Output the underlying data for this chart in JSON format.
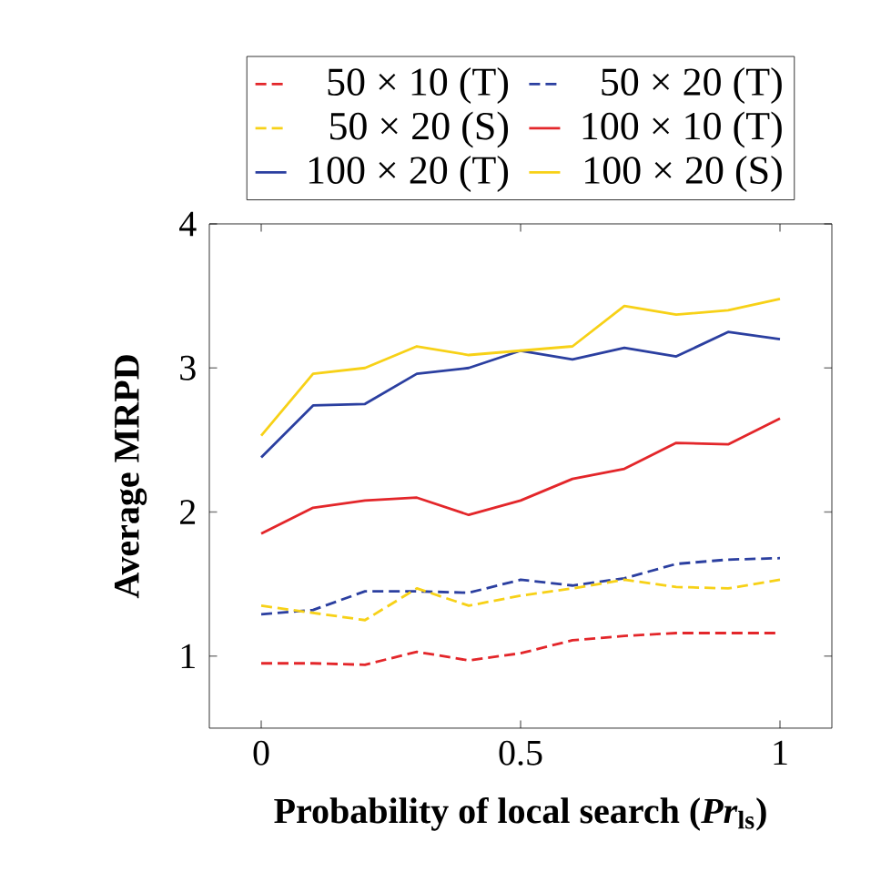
{
  "chart_data": {
    "type": "line",
    "xlabel": "Probability of local search (*Pr*$_{ls}$)",
    "ylabel": "Average MRPD",
    "x": [
      0,
      0.1,
      0.2,
      0.3,
      0.4,
      0.5,
      0.6,
      0.7,
      0.8,
      0.9,
      1
    ],
    "series": [
      {
        "name": "50 × 10 (T)",
        "color": "#e3262a",
        "line_style": "dashed",
        "values": [
          0.95,
          0.95,
          0.94,
          1.03,
          0.97,
          1.02,
          1.11,
          1.14,
          1.16,
          1.16,
          1.16
        ]
      },
      {
        "name": "50 × 20 (T)",
        "color": "#2b3fa0",
        "line_style": "dashed",
        "values": [
          1.29,
          1.32,
          1.45,
          1.45,
          1.44,
          1.53,
          1.49,
          1.54,
          1.64,
          1.67,
          1.68
        ]
      },
      {
        "name": "50 × 20 (S)",
        "color": "#f7d117",
        "line_style": "dashed",
        "values": [
          1.35,
          1.3,
          1.25,
          1.47,
          1.35,
          1.42,
          1.47,
          1.53,
          1.48,
          1.47,
          1.53
        ]
      },
      {
        "name": "100 × 10 (T)",
        "color": "#e3262a",
        "line_style": "solid",
        "values": [
          1.85,
          2.03,
          2.08,
          2.1,
          1.98,
          2.08,
          2.23,
          2.3,
          2.48,
          2.47,
          2.65
        ]
      },
      {
        "name": "100 × 20 (T)",
        "color": "#2b3fa0",
        "line_style": "solid",
        "values": [
          2.38,
          2.74,
          2.75,
          2.96,
          3.0,
          3.12,
          3.06,
          3.14,
          3.08,
          3.25,
          3.2
        ]
      },
      {
        "name": "100 × 20 (S)",
        "color": "#f7d117",
        "line_style": "solid",
        "values": [
          2.53,
          2.96,
          3.0,
          3.15,
          3.09,
          3.12,
          3.15,
          3.43,
          3.37,
          3.4,
          3.48
        ]
      }
    ],
    "xlim": [
      -0.1,
      1.1
    ],
    "ylim": [
      0.5,
      4
    ],
    "xticks": [
      0,
      0.5,
      1
    ],
    "yticks": [
      1,
      2,
      3,
      4
    ],
    "legend": "top",
    "grid": false
  }
}
